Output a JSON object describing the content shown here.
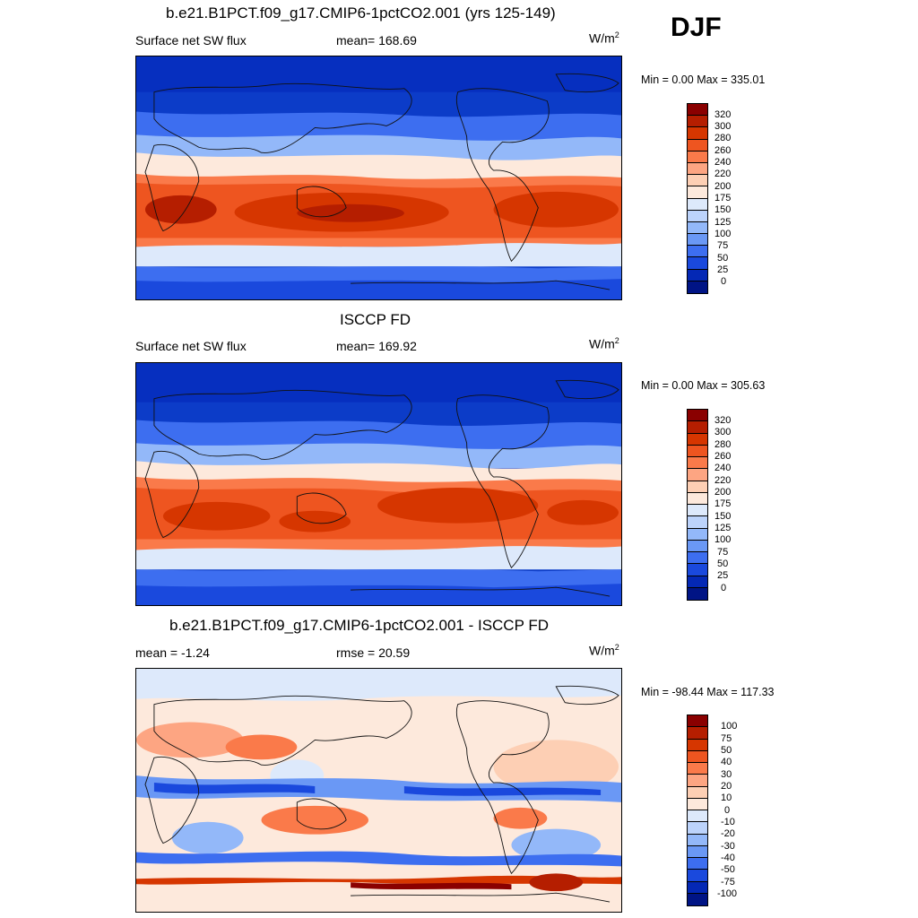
{
  "season": "DJF",
  "panels": [
    {
      "title": "b.e21.B1PCT.f09_g17.CMIP6-1pctCO2.001 (yrs 125-149)",
      "left": "Surface net SW flux",
      "center": "mean= 168.69",
      "units": "W/m",
      "units_sup": "2",
      "minmax": "Min =   0.00 Max = 335.01",
      "colorbar": {
        "colors": [
          "#8a0000",
          "#b51e00",
          "#d63600",
          "#ee5520",
          "#fa7a4a",
          "#fda582",
          "#fdcfb4",
          "#fde9dc",
          "#dde9fb",
          "#bcd3fb",
          "#93b8f9",
          "#6a98f5",
          "#3d6ef0",
          "#1a49dd",
          "#0428b5",
          "#001485"
        ],
        "labels": [
          "320",
          "300",
          "280",
          "260",
          "240",
          "220",
          "200",
          "175",
          "150",
          "125",
          "100",
          "75",
          "50",
          "25",
          "0"
        ]
      }
    },
    {
      "title": "ISCCP FD",
      "left": "Surface net SW flux",
      "center": "mean= 169.92",
      "units": "W/m",
      "units_sup": "2",
      "minmax": "Min =   0.00 Max = 305.63",
      "colorbar": {
        "colors": [
          "#8a0000",
          "#b51e00",
          "#d63600",
          "#ee5520",
          "#fa7a4a",
          "#fda582",
          "#fdcfb4",
          "#fde9dc",
          "#dde9fb",
          "#bcd3fb",
          "#93b8f9",
          "#6a98f5",
          "#3d6ef0",
          "#1a49dd",
          "#0428b5",
          "#001485"
        ],
        "labels": [
          "320",
          "300",
          "280",
          "260",
          "240",
          "220",
          "200",
          "175",
          "150",
          "125",
          "100",
          "75",
          "50",
          "25",
          "0"
        ]
      }
    },
    {
      "title": "b.e21.B1PCT.f09_g17.CMIP6-1pctCO2.001 - ISCCP FD",
      "left": "mean =  -1.24",
      "center": "rmse =  20.59",
      "units": "W/m",
      "units_sup": "2",
      "minmax": "Min = -98.44 Max = 117.33",
      "colorbar": {
        "colors": [
          "#8a0000",
          "#b51e00",
          "#d63600",
          "#ee5520",
          "#fa7a4a",
          "#fda582",
          "#fdcfb4",
          "#fde9dc",
          "#dde9fb",
          "#bcd3fb",
          "#93b8f9",
          "#6a98f5",
          "#3d6ef0",
          "#1a49dd",
          "#0428b5",
          "#001485"
        ],
        "labels": [
          "100",
          "75",
          "50",
          "40",
          "30",
          "20",
          "10",
          "0",
          "-10",
          "-20",
          "-30",
          "-40",
          "-50",
          "-75",
          "-100"
        ]
      }
    }
  ]
}
